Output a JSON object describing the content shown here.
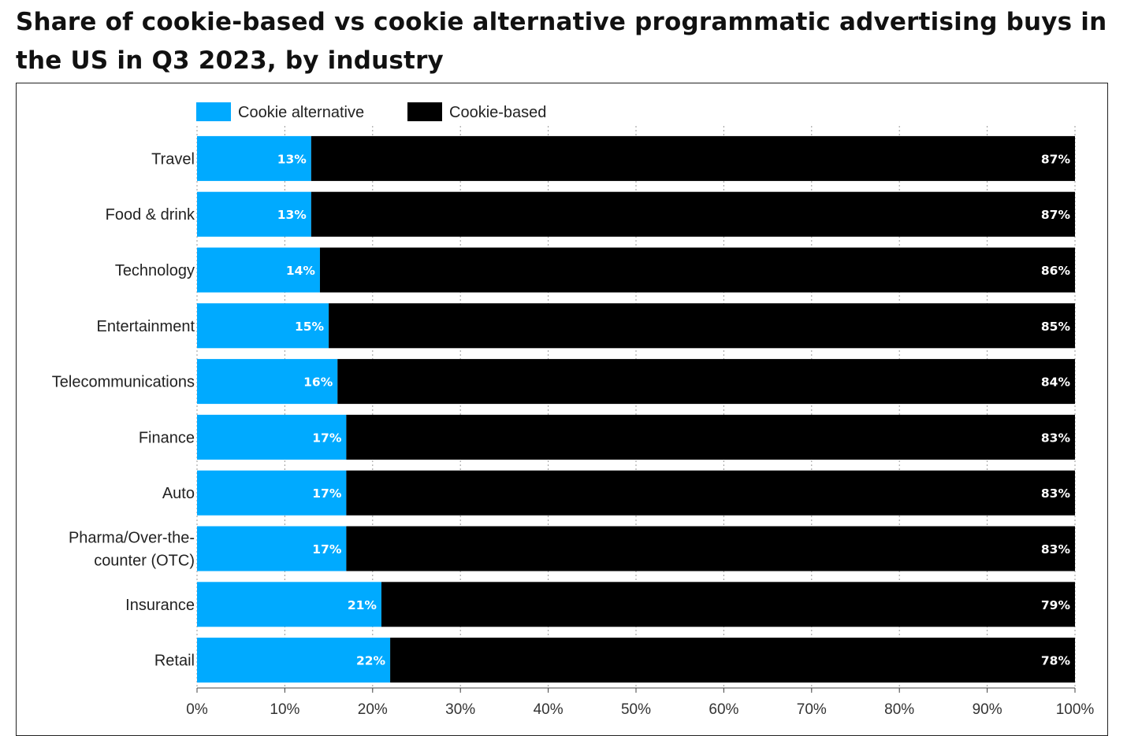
{
  "chart_data": {
    "type": "bar",
    "orientation": "horizontal",
    "stacked": true,
    "title": "Share of cookie-based vs cookie alternative programmatic advertising buys in the US in Q3 2023, by industry",
    "categories": [
      "Travel",
      "Food & drink",
      "Technology",
      "Entertainment",
      "Telecommunications",
      "Finance",
      "Auto",
      "Pharma/Over-the-counter (OTC)",
      "Insurance",
      "Retail"
    ],
    "category_lines": [
      [
        "Travel"
      ],
      [
        "Food & drink"
      ],
      [
        "Technology"
      ],
      [
        "Entertainment"
      ],
      [
        "Telecommunications"
      ],
      [
        "Finance"
      ],
      [
        "Auto"
      ],
      [
        "Pharma/Over-the-",
        "counter (OTC)"
      ],
      [
        "Insurance"
      ],
      [
        "Retail"
      ]
    ],
    "series": [
      {
        "name": "Cookie alternative",
        "color": "#00aaff",
        "values": [
          13,
          13,
          14,
          15,
          16,
          17,
          17,
          17,
          21,
          22
        ],
        "labels": [
          "13%",
          "13%",
          "14%",
          "15%",
          "16%",
          "17%",
          "17%",
          "17%",
          "21%",
          "22%"
        ]
      },
      {
        "name": "Cookie-based",
        "color": "#000000",
        "values": [
          87,
          87,
          86,
          85,
          84,
          83,
          83,
          83,
          79,
          78
        ],
        "labels": [
          "87%",
          "87%",
          "86%",
          "85%",
          "84%",
          "83%",
          "83%",
          "83%",
          "79%",
          "78%"
        ]
      }
    ],
    "xlim": [
      0,
      100
    ],
    "xticks": [
      0,
      10,
      20,
      30,
      40,
      50,
      60,
      70,
      80,
      90,
      100
    ],
    "xtick_labels": [
      "0%",
      "10%",
      "20%",
      "30%",
      "40%",
      "50%",
      "60%",
      "70%",
      "80%",
      "90%",
      "100%"
    ],
    "grid": "vertical-dashed",
    "legend": "top-left",
    "xlabel": "",
    "ylabel": ""
  }
}
